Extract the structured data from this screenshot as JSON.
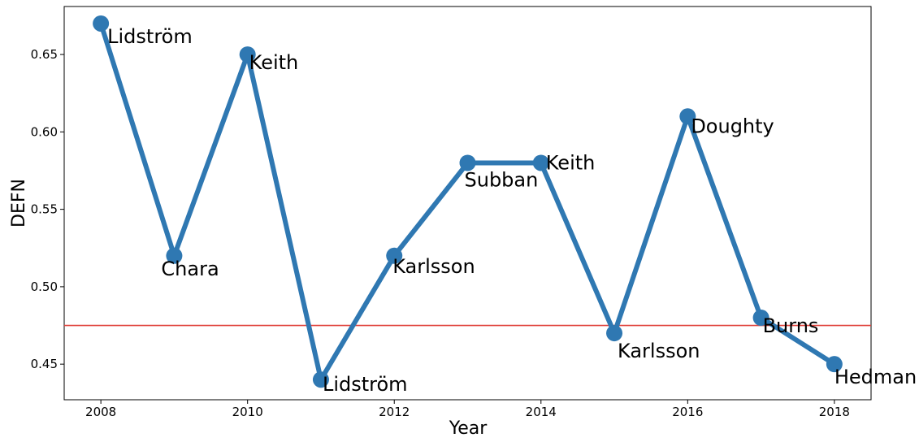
{
  "chart_data": {
    "type": "line",
    "title": "",
    "xlabel": "Year",
    "ylabel": "DEFN",
    "xlim": [
      2007.5,
      2018.5
    ],
    "ylim": [
      0.427,
      0.681
    ],
    "xticks": [
      2008,
      2010,
      2012,
      2014,
      2016,
      2018
    ],
    "yticks": [
      0.45,
      0.5,
      0.55,
      0.6,
      0.65
    ],
    "ytick_labels": [
      "0.45",
      "0.50",
      "0.55",
      "0.60",
      "0.65"
    ],
    "grid": false,
    "series": [
      {
        "name": "DEFN",
        "color": "#2f78b2",
        "points": [
          {
            "x": 2008,
            "y": 0.67,
            "label": "Lidström"
          },
          {
            "x": 2009,
            "y": 0.52,
            "label": "Chara"
          },
          {
            "x": 2010,
            "y": 0.65,
            "label": "Keith"
          },
          {
            "x": 2011,
            "y": 0.44,
            "label": "Lidström"
          },
          {
            "x": 2012,
            "y": 0.52,
            "label": "Karlsson"
          },
          {
            "x": 2013,
            "y": 0.58,
            "label": "Subban"
          },
          {
            "x": 2014,
            "y": 0.58,
            "label": "Keith"
          },
          {
            "x": 2015,
            "y": 0.47,
            "label": "Karlsson"
          },
          {
            "x": 2016,
            "y": 0.61,
            "label": "Doughty"
          },
          {
            "x": 2017,
            "y": 0.48,
            "label": "Burns"
          },
          {
            "x": 2018,
            "y": 0.45,
            "label": "Hedman"
          }
        ]
      }
    ],
    "reference_line": {
      "orientation": "horizontal",
      "y": 0.475,
      "color": "#e0403a"
    }
  }
}
